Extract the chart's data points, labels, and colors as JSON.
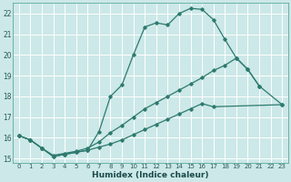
{
  "bg_color": "#cce8e8",
  "grid_color": "#ffffff",
  "line_color": "#2d7a6e",
  "xlabel": "Humidex (Indice chaleur)",
  "xlim": [
    -0.5,
    23.5
  ],
  "ylim": [
    14.8,
    22.5
  ],
  "xticks": [
    0,
    1,
    2,
    3,
    4,
    5,
    6,
    7,
    8,
    9,
    10,
    11,
    12,
    13,
    14,
    15,
    16,
    17,
    18,
    19,
    20,
    21,
    22,
    23
  ],
  "yticks": [
    15,
    16,
    17,
    18,
    19,
    20,
    21,
    22
  ],
  "curve_top_x": [
    0,
    1,
    2,
    3,
    4,
    5,
    6,
    7,
    8,
    9,
    10,
    11,
    12,
    13,
    14,
    15,
    16,
    17,
    18,
    19,
    20,
    21
  ],
  "curve_top_y": [
    16.1,
    15.9,
    15.5,
    15.1,
    15.2,
    15.3,
    15.4,
    16.3,
    18.0,
    18.55,
    20.0,
    21.35,
    21.55,
    21.45,
    22.0,
    22.25,
    22.2,
    21.7,
    20.75,
    19.85,
    19.3,
    18.5
  ],
  "curve_mid_x": [
    0,
    1,
    2,
    3,
    4,
    5,
    6,
    7,
    8,
    9,
    10,
    11,
    12,
    13,
    14,
    15,
    16,
    17,
    18,
    19,
    20,
    21,
    23
  ],
  "curve_mid_y": [
    16.1,
    15.9,
    15.5,
    15.15,
    15.25,
    15.35,
    15.5,
    15.8,
    16.25,
    16.6,
    17.0,
    17.4,
    17.7,
    18.0,
    18.3,
    18.6,
    18.9,
    19.25,
    19.5,
    19.85,
    19.3,
    18.5,
    17.6
  ],
  "curve_bot_x": [
    0,
    1,
    2,
    3,
    4,
    5,
    6,
    7,
    8,
    9,
    10,
    11,
    12,
    13,
    14,
    15,
    16,
    17,
    23
  ],
  "curve_bot_y": [
    16.1,
    15.9,
    15.5,
    15.1,
    15.2,
    15.3,
    15.4,
    15.55,
    15.7,
    15.9,
    16.15,
    16.4,
    16.65,
    16.9,
    17.15,
    17.4,
    17.65,
    17.5,
    17.6
  ]
}
